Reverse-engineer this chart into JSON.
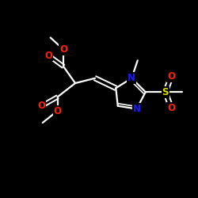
{
  "background_color": "#000000",
  "bond_color": "#ffffff",
  "atom_colors": {
    "O": "#ff2200",
    "N": "#1a1aff",
    "S": "#dddd00",
    "C": "#ffffff"
  },
  "figsize": [
    2.5,
    2.5
  ],
  "dpi": 100
}
